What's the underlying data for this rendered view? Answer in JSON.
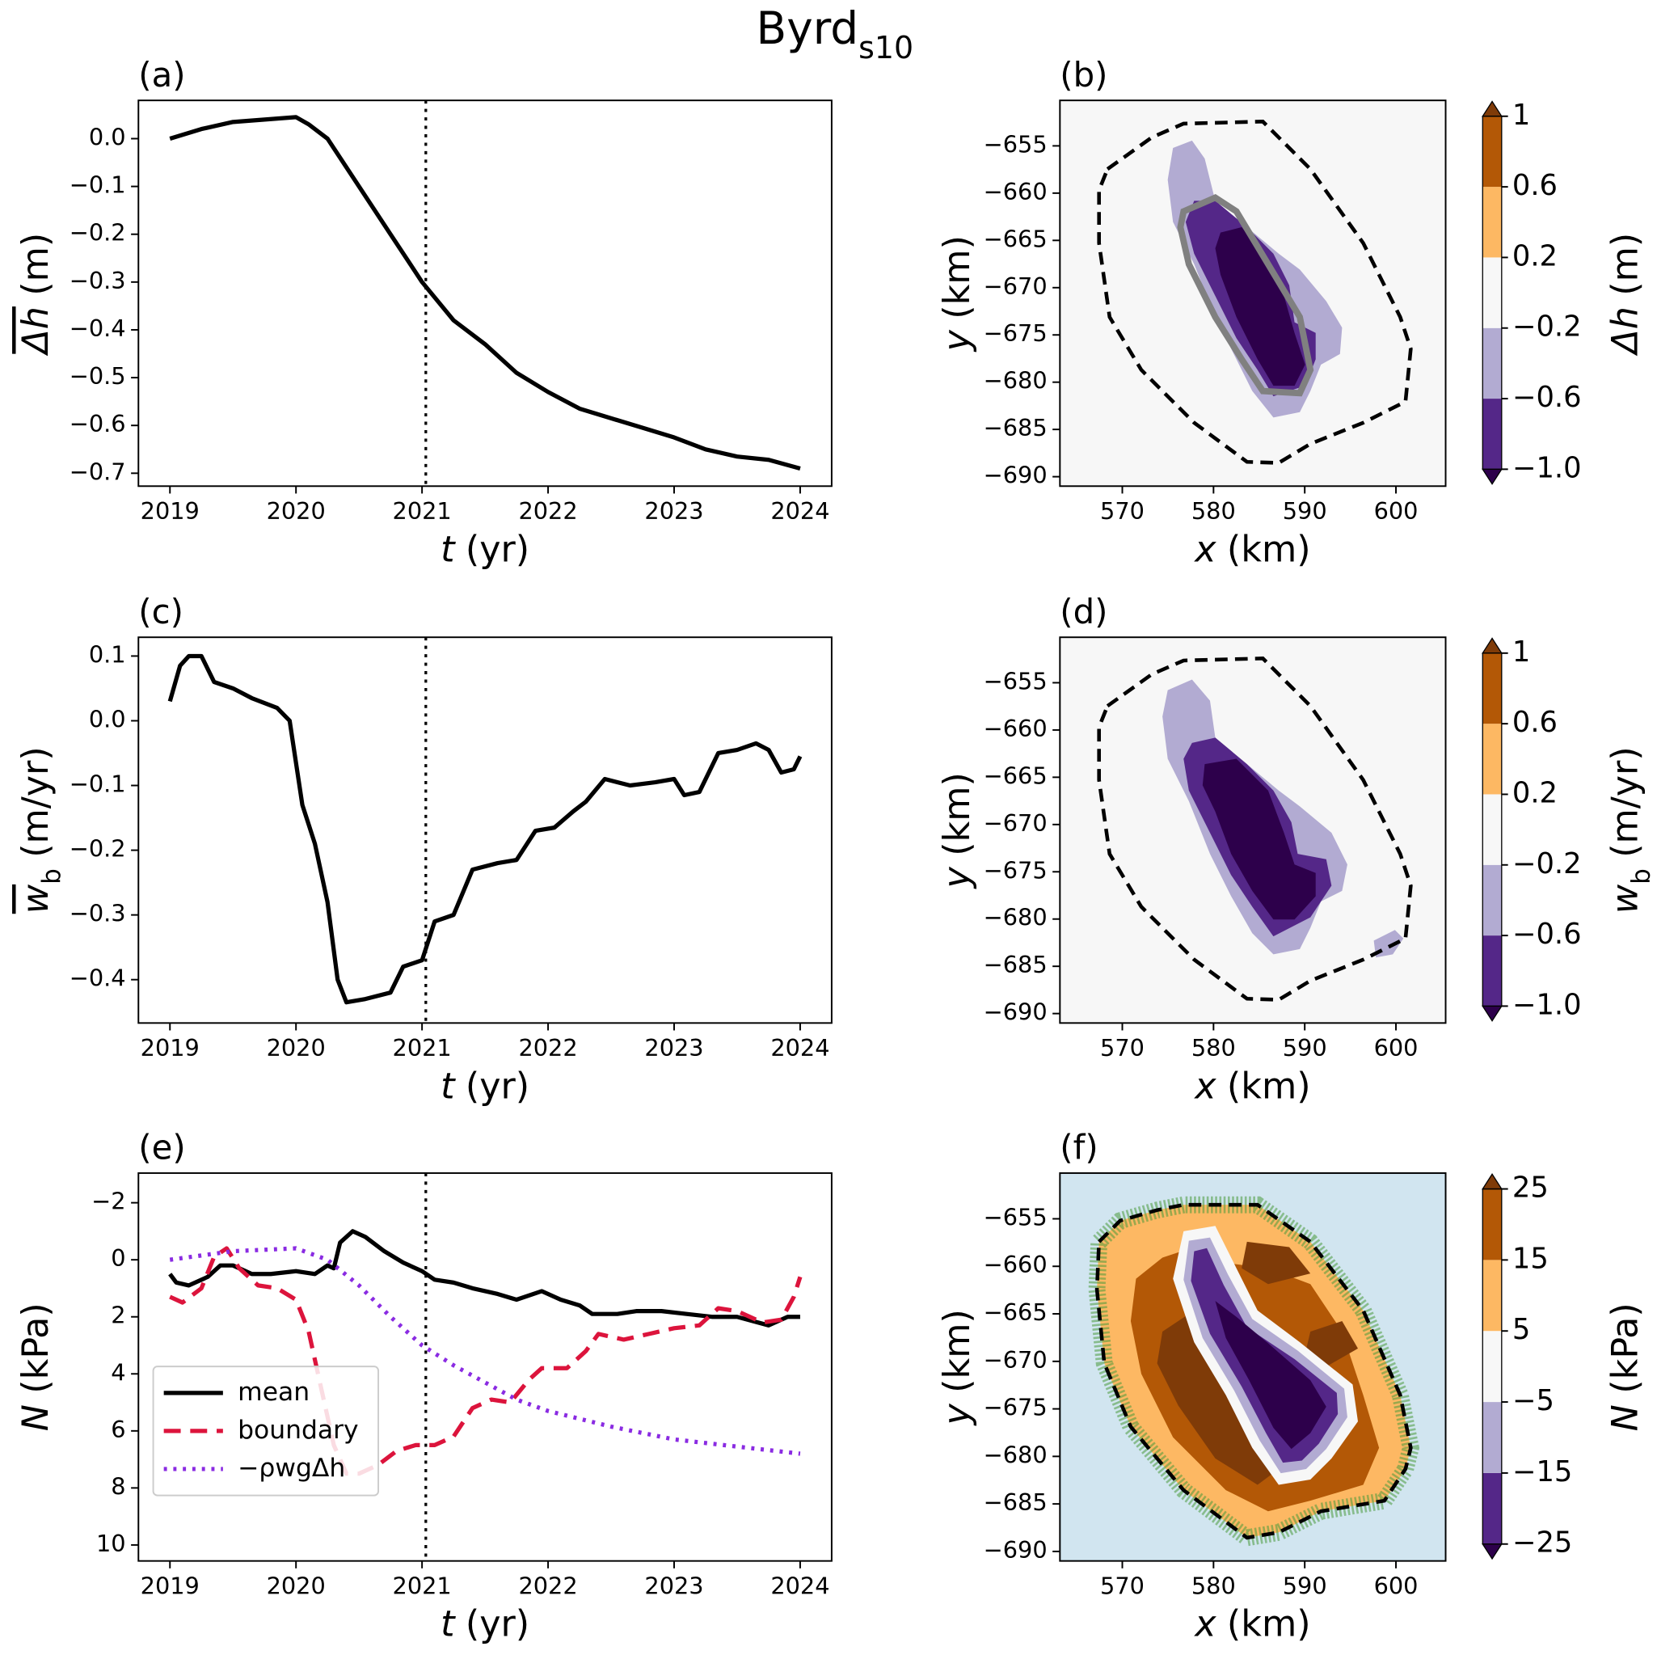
{
  "title": "Byrd",
  "title_subscript": "s10",
  "chart_data": [
    {
      "type": "line",
      "panel_label": "(a)",
      "xlim": [
        2018.75,
        2024.25
      ],
      "ylim": [
        -0.727,
        0.08
      ],
      "xticks": [
        2019,
        2020,
        2021,
        2022,
        2023,
        2024
      ],
      "yticks": [
        {
          "value": -0.7,
          "label": "−0.7"
        },
        {
          "value": -0.6,
          "label": "−0.6"
        },
        {
          "value": -0.5,
          "label": "−0.5"
        },
        {
          "value": -0.4,
          "label": "−0.4"
        },
        {
          "value": -0.3,
          "label": "−0.3"
        },
        {
          "value": -0.2,
          "label": "−0.2"
        },
        {
          "value": -0.1,
          "label": "−0.1"
        },
        {
          "value": 0,
          "label": "0.0"
        }
      ],
      "xlabel": {
        "symbol": "t",
        "unit": "(yr)"
      },
      "ylabel": {
        "symbol": "Δh",
        "unit": "(m)"
      },
      "ylabel_overline": true,
      "vline_x": 2021.03,
      "series": [
        {
          "color": "#000000",
          "style": "solid",
          "x": [
            2019,
            2019.25,
            2019.5,
            2019.75,
            2020,
            2020.1,
            2020.25,
            2020.5,
            2020.75,
            2021,
            2021.25,
            2021.5,
            2021.75,
            2022,
            2022.25,
            2022.5,
            2022.75,
            2023,
            2023.25,
            2023.5,
            2023.75,
            2024
          ],
          "values": [
            0.0,
            0.02,
            0.035,
            0.04,
            0.045,
            0.03,
            0.0,
            -0.1,
            -0.2,
            -0.3,
            -0.38,
            -0.43,
            -0.49,
            -0.53,
            -0.565,
            -0.585,
            -0.605,
            -0.625,
            -0.65,
            -0.665,
            -0.672,
            -0.69
          ]
        }
      ]
    },
    {
      "type": "contour",
      "panel_label": "(b)",
      "xlim": [
        563.16,
        605.45
      ],
      "ylim": [
        -691.0,
        -650.19
      ],
      "xticks": [
        570,
        580,
        590,
        600
      ],
      "yticks": [
        {
          "value": -690,
          "label": "−690"
        },
        {
          "value": -685,
          "label": "−685"
        },
        {
          "value": -680,
          "label": "−680"
        },
        {
          "value": -675,
          "label": "−675"
        },
        {
          "value": -670,
          "label": "−670"
        },
        {
          "value": -665,
          "label": "−665"
        },
        {
          "value": -660,
          "label": "−660"
        },
        {
          "value": -655,
          "label": "−655"
        }
      ],
      "xlabel": {
        "symbol": "x",
        "unit": "(km)"
      },
      "ylabel": {
        "symbol": "y",
        "unit": "(km)"
      },
      "background": "#f7f7f7",
      "colorbar": {
        "label": {
          "symbol": "Δh",
          "unit": "(m)"
        },
        "levels": [
          {
            "value": -1.0,
            "label": "−1.0"
          },
          {
            "value": -0.6,
            "label": "−0.6"
          },
          {
            "value": -0.2,
            "label": "−0.2"
          },
          0.2,
          0.6,
          1.0
        ],
        "colors": [
          "#2d004b",
          "#542788",
          "#b2abd2",
          "#f7f7f7",
          "#fdb863",
          "#b35806",
          "#7f3b08"
        ]
      }
    },
    {
      "type": "line",
      "panel_label": "(c)",
      "xlim": [
        2018.75,
        2024.25
      ],
      "ylim": [
        -0.467,
        0.129
      ],
      "xticks": [
        2019,
        2020,
        2021,
        2022,
        2023,
        2024
      ],
      "yticks": [
        {
          "value": -0.4,
          "label": "−0.4"
        },
        {
          "value": -0.3,
          "label": "−0.3"
        },
        {
          "value": -0.2,
          "label": "−0.2"
        },
        {
          "value": -0.1,
          "label": "−0.1"
        },
        {
          "value": 0,
          "label": "0.0"
        },
        0.1
      ],
      "xlabel": {
        "symbol": "t",
        "unit": "(yr)"
      },
      "ylabel": {
        "symbol": "w",
        "subscript": "b",
        "unit": "(m/yr)"
      },
      "ylabel_overline": true,
      "vline_x": 2021.03,
      "series": [
        {
          "color": "#000000",
          "style": "solid",
          "x": [
            2019,
            2019.08,
            2019.15,
            2019.25,
            2019.35,
            2019.5,
            2019.65,
            2019.85,
            2019.95,
            2020.05,
            2020.15,
            2020.25,
            2020.33,
            2020.4,
            2020.55,
            2020.75,
            2020.85,
            2021.0,
            2021.1,
            2021.25,
            2021.4,
            2021.6,
            2021.75,
            2021.9,
            2022.05,
            2022.2,
            2022.3,
            2022.45,
            2022.65,
            2022.85,
            2023.0,
            2023.08,
            2023.2,
            2023.35,
            2023.5,
            2023.65,
            2023.75,
            2023.85,
            2023.95,
            2024
          ],
          "values": [
            0.03,
            0.085,
            0.1,
            0.1,
            0.06,
            0.05,
            0.035,
            0.02,
            0.0,
            -0.13,
            -0.19,
            -0.28,
            -0.4,
            -0.435,
            -0.43,
            -0.42,
            -0.38,
            -0.37,
            -0.31,
            -0.3,
            -0.23,
            -0.22,
            -0.215,
            -0.17,
            -0.165,
            -0.14,
            -0.125,
            -0.09,
            -0.1,
            -0.095,
            -0.09,
            -0.115,
            -0.11,
            -0.05,
            -0.045,
            -0.035,
            -0.045,
            -0.08,
            -0.075,
            -0.055
          ]
        }
      ]
    },
    {
      "type": "contour",
      "panel_label": "(d)",
      "xlim": [
        563.16,
        605.45
      ],
      "ylim": [
        -691.0,
        -650.19
      ],
      "xticks": [
        570,
        580,
        590,
        600
      ],
      "yticks": [
        {
          "value": -690,
          "label": "−690"
        },
        {
          "value": -685,
          "label": "−685"
        },
        {
          "value": -680,
          "label": "−680"
        },
        {
          "value": -675,
          "label": "−675"
        },
        {
          "value": -670,
          "label": "−670"
        },
        {
          "value": -665,
          "label": "−665"
        },
        {
          "value": -660,
          "label": "−660"
        },
        {
          "value": -655,
          "label": "−655"
        }
      ],
      "xlabel": {
        "symbol": "x",
        "unit": "(km)"
      },
      "ylabel": {
        "symbol": "y",
        "unit": "(km)"
      },
      "background": "#f7f7f7",
      "colorbar": {
        "label": {
          "symbol": "w",
          "subscript": "b",
          "unit": "(m/yr)"
        },
        "levels": [
          {
            "value": -1.0,
            "label": "−1.0"
          },
          {
            "value": -0.6,
            "label": "−0.6"
          },
          {
            "value": -0.2,
            "label": "−0.2"
          },
          0.2,
          0.6,
          1.0
        ],
        "colors": [
          "#2d004b",
          "#542788",
          "#b2abd2",
          "#f7f7f7",
          "#fdb863",
          "#b35806",
          "#7f3b08"
        ]
      }
    },
    {
      "type": "line",
      "panel_label": "(e)",
      "xlim": [
        2018.75,
        2024.25
      ],
      "ylim": [
        10.56,
        -3.04
      ],
      "xticks": [
        2019,
        2020,
        2021,
        2022,
        2023,
        2024
      ],
      "yticks": [
        {
          "value": -2,
          "label": "−2"
        },
        0,
        2,
        4,
        6,
        8,
        10
      ],
      "xlabel": {
        "symbol": "t",
        "unit": "(yr)"
      },
      "ylabel": {
        "symbol": "N",
        "unit": "(kPa)"
      },
      "ylabel_overline": false,
      "vline_x": 2021.03,
      "legend": "lower left",
      "series": [
        {
          "name": "mean",
          "color": "#000000",
          "style": "solid",
          "x": [
            2019,
            2019.05,
            2019.15,
            2019.3,
            2019.4,
            2019.5,
            2019.65,
            2019.8,
            2020,
            2020.15,
            2020.25,
            2020.3,
            2020.35,
            2020.45,
            2020.55,
            2020.7,
            2020.85,
            2021,
            2021.1,
            2021.25,
            2021.4,
            2021.6,
            2021.75,
            2021.95,
            2022.1,
            2022.25,
            2022.35,
            2022.55,
            2022.7,
            2022.9,
            2023.1,
            2023.3,
            2023.5,
            2023.75,
            2023.9,
            2024
          ],
          "values": [
            0.5,
            0.8,
            0.9,
            0.6,
            0.2,
            0.2,
            0.5,
            0.5,
            0.4,
            0.5,
            0.2,
            0.3,
            -0.6,
            -1.0,
            -0.8,
            -0.3,
            0.1,
            0.4,
            0.7,
            0.8,
            1.0,
            1.2,
            1.4,
            1.1,
            1.4,
            1.6,
            1.9,
            1.9,
            1.8,
            1.8,
            1.9,
            2.0,
            2.0,
            2.3,
            2.0,
            2.0
          ]
        },
        {
          "name": "boundary",
          "color": "#dc143c",
          "style": "dashed",
          "x": [
            2019,
            2019.1,
            2019.25,
            2019.35,
            2019.45,
            2019.55,
            2019.7,
            2019.85,
            2020,
            2020.1,
            2020.2,
            2020.3,
            2020.4,
            2020.5,
            2020.65,
            2020.8,
            2020.95,
            2021.1,
            2021.25,
            2021.4,
            2021.55,
            2021.7,
            2021.85,
            2021.95,
            2022.15,
            2022.3,
            2022.4,
            2022.6,
            2022.8,
            2023.0,
            2023.2,
            2023.35,
            2023.5,
            2023.7,
            2023.85,
            2023.95,
            2024
          ],
          "values": [
            1.3,
            1.5,
            1.0,
            -0.1,
            -0.4,
            0.3,
            0.9,
            1.0,
            1.4,
            2.5,
            4.5,
            6.5,
            7.5,
            7.5,
            7.2,
            6.7,
            6.5,
            6.5,
            6.2,
            5.2,
            4.9,
            5.0,
            4.2,
            3.8,
            3.8,
            3.2,
            2.6,
            2.8,
            2.6,
            2.4,
            2.3,
            1.7,
            1.8,
            2.2,
            2.1,
            1.3,
            0.6
          ]
        },
        {
          "name": "−ρwgΔh",
          "color": "#8a2be2",
          "style": "dotted",
          "x": [
            2019,
            2019.5,
            2020,
            2020.25,
            2020.5,
            2020.75,
            2021,
            2021.25,
            2021.5,
            2021.75,
            2022,
            2022.5,
            2023,
            2023.5,
            2024
          ],
          "values": [
            0.0,
            -0.3,
            -0.4,
            0.0,
            0.9,
            2.0,
            3.0,
            3.7,
            4.3,
            4.9,
            5.3,
            5.85,
            6.3,
            6.55,
            6.8
          ]
        }
      ]
    },
    {
      "type": "contour",
      "panel_label": "(f)",
      "xlim": [
        563.16,
        605.45
      ],
      "ylim": [
        -691.0,
        -650.19
      ],
      "xticks": [
        570,
        580,
        590,
        600
      ],
      "yticks": [
        {
          "value": -690,
          "label": "−690"
        },
        {
          "value": -685,
          "label": "−685"
        },
        {
          "value": -680,
          "label": "−680"
        },
        {
          "value": -675,
          "label": "−675"
        },
        {
          "value": -670,
          "label": "−670"
        },
        {
          "value": -665,
          "label": "−665"
        },
        {
          "value": -660,
          "label": "−660"
        },
        {
          "value": -655,
          "label": "−655"
        }
      ],
      "xlabel": {
        "symbol": "x",
        "unit": "(km)"
      },
      "ylabel": {
        "symbol": "y",
        "unit": "(km)"
      },
      "background": "#d1e5f0",
      "colorbar": {
        "label": {
          "symbol": "N",
          "unit": "(kPa)"
        },
        "levels": [
          {
            "value": -25,
            "label": "−25"
          },
          {
            "value": -15,
            "label": "−15"
          },
          {
            "value": -5,
            "label": "−5"
          },
          5,
          15,
          25
        ],
        "colors": [
          "#2d004b",
          "#542788",
          "#b2abd2",
          "#f7f7f7",
          "#fdb863",
          "#b35806",
          "#7f3b08"
        ]
      }
    }
  ]
}
